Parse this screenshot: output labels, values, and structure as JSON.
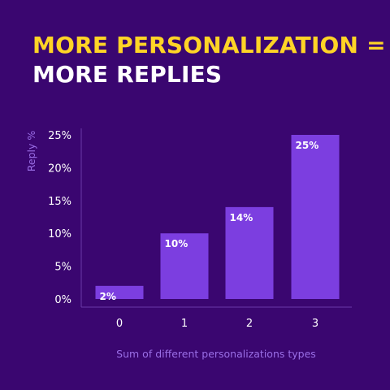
{
  "header": {
    "title_line1": "MORE PERSONALIZATION =",
    "title_line2": "MORE REPLIES"
  },
  "colors": {
    "background": "#3a0670",
    "title_accent": "#ffd426",
    "bar": "#7c3ee0",
    "axis_title": "#9a6ee6",
    "axis_line": "#6a3aa8"
  },
  "chart_data": {
    "type": "bar",
    "title": "MORE PERSONALIZATION = MORE REPLIES",
    "xlabel": "Sum of different personalizations types",
    "ylabel": "Reply %",
    "categories": [
      "0",
      "1",
      "2",
      "3"
    ],
    "values": [
      2,
      10,
      14,
      25
    ],
    "data_labels": [
      "2%",
      "10%",
      "14%",
      "25%"
    ],
    "ylim": [
      0,
      25
    ],
    "yticks": [
      0,
      5,
      10,
      15,
      20,
      25
    ],
    "ytick_labels": [
      "0%",
      "5%",
      "10%",
      "15%",
      "20%",
      "25%"
    ],
    "grid": false,
    "legend": "none"
  }
}
